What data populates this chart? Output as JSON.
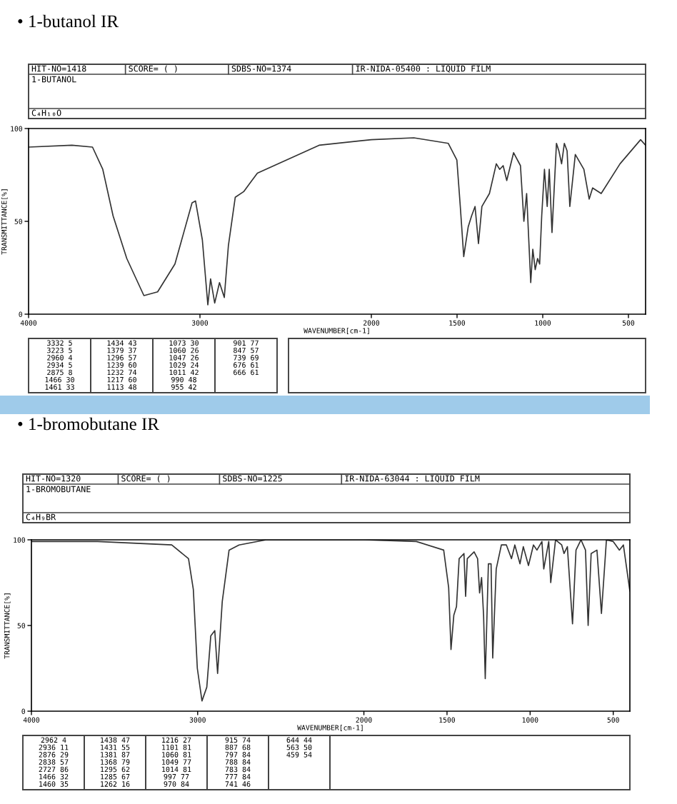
{
  "chart_data": [
    {
      "type": "line",
      "title": "• 1-butanol IR",
      "xlabel": "WAVENUMBER[cm-1]",
      "ylabel": "TRANSMITTANCE[%]",
      "xlim": [
        4000,
        400
      ],
      "xticks": [
        4000,
        3000,
        2000,
        1500,
        1000,
        500
      ],
      "ylim": [
        0,
        100
      ],
      "yticks": [
        0,
        50,
        100
      ],
      "x": [
        4000,
        3747,
        3627,
        3567,
        3507,
        3427,
        3327,
        3247,
        3146,
        3046,
        3026,
        2986,
        2954,
        2938,
        2914,
        2886,
        2858,
        2834,
        2794,
        2745,
        2665,
        2545,
        2305,
        2000,
        1752,
        1551,
        1501,
        1481,
        1461,
        1435,
        1415,
        1395,
        1375,
        1355,
        1311,
        1271,
        1251,
        1231,
        1210,
        1170,
        1130,
        1110,
        1094,
        1070,
        1058,
        1044,
        1030,
        1018,
        1006,
        990,
        974,
        962,
        946,
        920,
        906,
        890,
        874,
        858,
        842,
        810,
        760,
        729,
        709,
        659,
        549,
        429,
        400
      ],
      "series": [
        {
          "color": "#333333",
          "values": [
            90,
            91,
            90,
            78,
            53,
            30,
            10,
            12,
            27,
            60,
            61,
            40,
            5,
            19,
            6,
            17,
            9,
            37,
            63,
            66,
            76,
            81,
            91,
            94,
            95,
            92,
            83,
            58,
            31,
            47,
            53,
            58,
            38,
            58,
            65,
            81,
            78,
            80,
            72,
            87,
            80,
            50,
            65,
            17,
            35,
            24,
            30,
            27,
            53,
            78,
            58,
            78,
            44,
            92,
            88,
            81,
            92,
            88,
            58,
            86,
            78,
            62,
            68,
            65,
            81,
            94,
            91
          ]
        }
      ],
      "annotations": [
        "HIT-NO=1418",
        "SCORE= ( )",
        "SDBS-NO=1374",
        "IR-NIDA-05400 : LIQUID FILM",
        "1-BUTANOL",
        "C₄H₁₀O",
        "3332 5",
        "3223 5",
        "2960 4",
        "2934 5",
        "2875 8",
        "1466 30",
        "1461 33",
        "1434 43",
        "1379 37",
        "1296 57",
        "1239 60",
        "1232 74",
        "1217 60",
        "1113 48",
        "1073 30",
        "1060 26",
        "1047 26",
        "1029 24",
        "1011 42",
        "990 48",
        "955 42",
        "901 77",
        "847 57",
        "739 69",
        "676 61",
        "666 61"
      ]
    },
    {
      "type": "line",
      "title": "• 1-bromobutane IR",
      "xlabel": "WAVENUMBER[cm-1]",
      "ylabel": "TRANSMITTANCE[%]",
      "xlim": [
        4000,
        400
      ],
      "xticks": [
        4000,
        3000,
        2000,
        1500,
        1000,
        500
      ],
      "ylim": [
        0,
        100
      ],
      "yticks": [
        0,
        50,
        100
      ],
      "x": [
        4000,
        3602,
        3156,
        3055,
        3026,
        3002,
        2974,
        2945,
        2921,
        2897,
        2880,
        2852,
        2811,
        2751,
        2588,
        2000,
        1684,
        1520,
        1490,
        1476,
        1459,
        1443,
        1427,
        1398,
        1388,
        1378,
        1337,
        1316,
        1304,
        1292,
        1280,
        1270,
        1251,
        1235,
        1225,
        1204,
        1173,
        1143,
        1112,
        1092,
        1061,
        1041,
        1010,
        980,
        959,
        929,
        918,
        888,
        876,
        847,
        810,
        796,
        776,
        745,
        724,
        694,
        667,
        651,
        633,
        598,
        571,
        541,
        500,
        463,
        439,
        400
      ],
      "series": [
        {
          "color": "#333333",
          "values": [
            99,
            99,
            97,
            89,
            71,
            25,
            6,
            14,
            44,
            47,
            22,
            64,
            94,
            97,
            100,
            100,
            99,
            94,
            72,
            36,
            56,
            61,
            89,
            92,
            67,
            89,
            93,
            89,
            69,
            78,
            56,
            19,
            86,
            86,
            31,
            83,
            97,
            97,
            89,
            97,
            86,
            96,
            85,
            97,
            94,
            99,
            83,
            99,
            75,
            100,
            97,
            92,
            96,
            51,
            94,
            100,
            94,
            50,
            92,
            94,
            57,
            100,
            99,
            94,
            97,
            70
          ]
        }
      ],
      "annotations": [
        "HIT-NO=1320",
        "SCORE= ( )",
        "SDBS-NO=1225",
        "IR-NIDA-63044 : LIQUID FILM",
        "1-BROMOBUTANE",
        "C₄H₉BR",
        "2962 4",
        "2936 11",
        "2876 29",
        "2838 57",
        "2727 86",
        "1466 32",
        "1460 35",
        "1438 47",
        "1431 55",
        "1381 87",
        "1368 79",
        "1295 62",
        "1285 67",
        "1262 16",
        "1216 27",
        "1101 81",
        "1060 81",
        "1049 77",
        "1014 81",
        "997 77",
        "970 84",
        "915 74",
        "887 68",
        "797 84",
        "788 84",
        "783 84",
        "777 84",
        "741 46",
        "644 44",
        "563 50",
        "459 54"
      ]
    }
  ]
}
